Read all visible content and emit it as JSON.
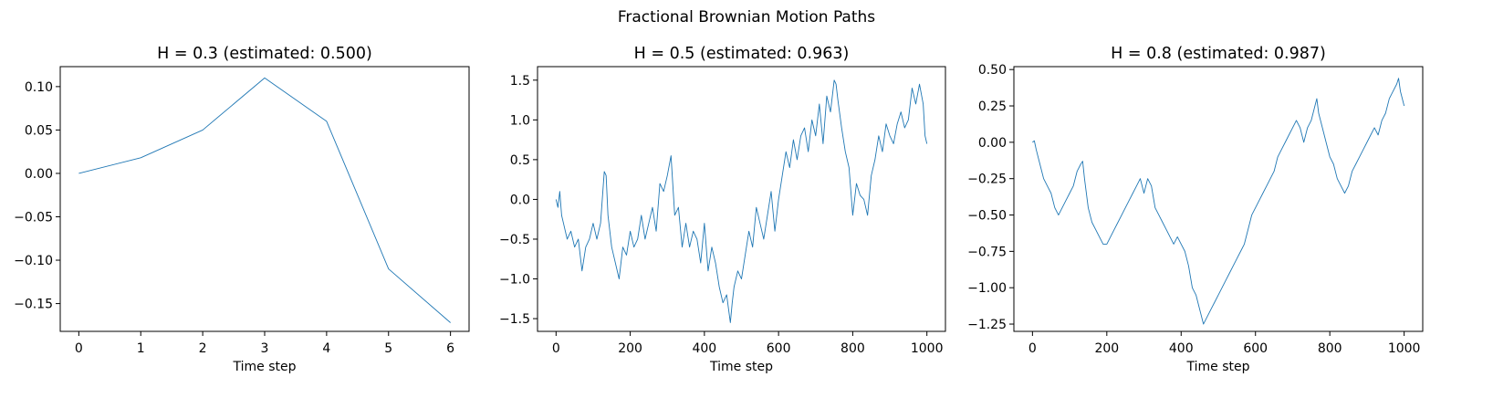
{
  "figure": {
    "suptitle": "Fractional Brownian Motion Paths"
  },
  "style": {
    "line_color": "#1f77b4"
  },
  "chart_data": [
    {
      "type": "line",
      "title": "H = 0.3 (estimated: 0.500)",
      "xlabel": "Time step",
      "ylabel": "",
      "xlim": [
        -0.3,
        6.3
      ],
      "ylim": [
        -0.182,
        0.123
      ],
      "xticks": [
        0,
        1,
        2,
        3,
        4,
        5,
        6
      ],
      "xtick_labels": [
        "0",
        "1",
        "2",
        "3",
        "4",
        "5",
        "6"
      ],
      "yticks": [
        0.1,
        0.05,
        0.0,
        -0.05,
        -0.1,
        -0.15
      ],
      "ytick_labels": [
        "0.10",
        "0.05",
        "0.00",
        "−0.05",
        "−0.10",
        "−0.15"
      ],
      "grid": false,
      "series": [
        {
          "x": [
            0,
            1,
            2,
            3,
            4,
            5,
            6
          ],
          "y": [
            0.0,
            0.018,
            0.05,
            0.11,
            0.06,
            -0.11,
            -0.172
          ]
        }
      ]
    },
    {
      "type": "line",
      "title": "H = 0.5 (estimated: 0.963)",
      "xlabel": "Time step",
      "ylabel": "",
      "xlim": [
        -50,
        1050
      ],
      "ylim": [
        -1.66,
        1.67
      ],
      "xticks": [
        0,
        200,
        400,
        600,
        800,
        1000
      ],
      "xtick_labels": [
        "0",
        "200",
        "400",
        "600",
        "800",
        "1000"
      ],
      "yticks": [
        1.5,
        1.0,
        0.5,
        0.0,
        -0.5,
        -1.0,
        -1.5
      ],
      "ytick_labels": [
        "1.5",
        "1.0",
        "0.5",
        "0.0",
        "−0.5",
        "−1.0",
        "−1.5"
      ],
      "grid": false,
      "series": [
        {
          "x": [
            0,
            5,
            10,
            15,
            20,
            30,
            40,
            50,
            60,
            70,
            80,
            90,
            100,
            110,
            120,
            130,
            135,
            140,
            150,
            160,
            170,
            180,
            190,
            200,
            210,
            220,
            230,
            240,
            250,
            260,
            270,
            280,
            290,
            300,
            310,
            320,
            330,
            340,
            350,
            360,
            370,
            380,
            390,
            400,
            410,
            420,
            430,
            440,
            450,
            460,
            470,
            475,
            480,
            490,
            500,
            510,
            520,
            530,
            540,
            550,
            560,
            570,
            580,
            590,
            600,
            610,
            620,
            630,
            640,
            650,
            660,
            670,
            680,
            690,
            700,
            710,
            720,
            730,
            740,
            750,
            755,
            760,
            770,
            780,
            790,
            800,
            810,
            820,
            830,
            840,
            850,
            860,
            870,
            880,
            890,
            900,
            910,
            920,
            930,
            940,
            950,
            960,
            970,
            980,
            990,
            995,
            1000
          ],
          "y": [
            0.0,
            -0.1,
            0.1,
            -0.2,
            -0.3,
            -0.5,
            -0.4,
            -0.6,
            -0.5,
            -0.9,
            -0.6,
            -0.5,
            -0.3,
            -0.5,
            -0.3,
            0.35,
            0.3,
            -0.2,
            -0.6,
            -0.8,
            -1.0,
            -0.6,
            -0.7,
            -0.4,
            -0.6,
            -0.5,
            -0.2,
            -0.5,
            -0.3,
            -0.1,
            -0.4,
            0.2,
            0.1,
            0.3,
            0.55,
            -0.2,
            -0.1,
            -0.6,
            -0.3,
            -0.6,
            -0.4,
            -0.5,
            -0.8,
            -0.3,
            -0.9,
            -0.6,
            -0.8,
            -1.1,
            -1.3,
            -1.2,
            -1.55,
            -1.3,
            -1.1,
            -0.9,
            -1.0,
            -0.7,
            -0.4,
            -0.6,
            -0.1,
            -0.3,
            -0.5,
            -0.2,
            0.1,
            -0.4,
            0.0,
            0.3,
            0.6,
            0.4,
            0.75,
            0.5,
            0.8,
            0.9,
            0.6,
            1.0,
            0.8,
            1.2,
            0.7,
            1.3,
            1.1,
            1.5,
            1.45,
            1.25,
            0.9,
            0.6,
            0.4,
            -0.2,
            0.2,
            0.05,
            0.0,
            -0.2,
            0.3,
            0.5,
            0.8,
            0.6,
            0.95,
            0.8,
            0.7,
            0.95,
            1.1,
            0.9,
            1.0,
            1.4,
            1.2,
            1.45,
            1.2,
            0.8,
            0.7
          ]
        }
      ]
    },
    {
      "type": "line",
      "title": "H = 0.8 (estimated: 0.987)",
      "xlabel": "Time step",
      "ylabel": "",
      "xlim": [
        -50,
        1050
      ],
      "ylim": [
        -1.3,
        0.52
      ],
      "xticks": [
        0,
        200,
        400,
        600,
        800,
        1000
      ],
      "xtick_labels": [
        "0",
        "200",
        "400",
        "600",
        "800",
        "1000"
      ],
      "yticks": [
        0.5,
        0.25,
        0.0,
        -0.25,
        -0.5,
        -0.75,
        -1.0,
        -1.25
      ],
      "ytick_labels": [
        "0.50",
        "0.25",
        "0.00",
        "−0.25",
        "−0.50",
        "−0.75",
        "−1.00",
        "−1.25"
      ],
      "grid": false,
      "series": [
        {
          "x": [
            0,
            5,
            10,
            20,
            30,
            40,
            50,
            60,
            70,
            80,
            90,
            100,
            110,
            120,
            130,
            135,
            140,
            150,
            160,
            170,
            180,
            190,
            200,
            210,
            220,
            230,
            240,
            250,
            260,
            270,
            280,
            290,
            300,
            310,
            320,
            330,
            340,
            350,
            360,
            370,
            380,
            390,
            400,
            410,
            420,
            430,
            440,
            450,
            460,
            470,
            480,
            490,
            500,
            510,
            520,
            530,
            540,
            550,
            560,
            570,
            580,
            590,
            600,
            610,
            620,
            630,
            640,
            650,
            660,
            670,
            680,
            690,
            700,
            710,
            720,
            730,
            740,
            750,
            760,
            765,
            770,
            780,
            790,
            800,
            810,
            820,
            830,
            840,
            850,
            860,
            870,
            880,
            890,
            900,
            910,
            920,
            930,
            940,
            950,
            960,
            970,
            980,
            985,
            990,
            1000
          ],
          "y": [
            0.0,
            0.01,
            -0.05,
            -0.15,
            -0.25,
            -0.3,
            -0.35,
            -0.45,
            -0.5,
            -0.45,
            -0.4,
            -0.35,
            -0.3,
            -0.2,
            -0.15,
            -0.13,
            -0.25,
            -0.45,
            -0.55,
            -0.6,
            -0.65,
            -0.7,
            -0.7,
            -0.65,
            -0.6,
            -0.55,
            -0.5,
            -0.45,
            -0.4,
            -0.35,
            -0.3,
            -0.25,
            -0.35,
            -0.25,
            -0.3,
            -0.45,
            -0.5,
            -0.55,
            -0.6,
            -0.65,
            -0.7,
            -0.65,
            -0.7,
            -0.75,
            -0.85,
            -1.0,
            -1.05,
            -1.15,
            -1.25,
            -1.2,
            -1.15,
            -1.1,
            -1.05,
            -1.0,
            -0.95,
            -0.9,
            -0.85,
            -0.8,
            -0.75,
            -0.7,
            -0.6,
            -0.5,
            -0.45,
            -0.4,
            -0.35,
            -0.3,
            -0.25,
            -0.2,
            -0.1,
            -0.05,
            0.0,
            0.05,
            0.1,
            0.15,
            0.1,
            0.0,
            0.1,
            0.15,
            0.25,
            0.3,
            0.2,
            0.1,
            0.0,
            -0.1,
            -0.15,
            -0.25,
            -0.3,
            -0.35,
            -0.3,
            -0.2,
            -0.15,
            -0.1,
            -0.05,
            0.0,
            0.05,
            0.1,
            0.05,
            0.15,
            0.2,
            0.3,
            0.35,
            0.4,
            0.44,
            0.35,
            0.25
          ]
        }
      ]
    }
  ]
}
